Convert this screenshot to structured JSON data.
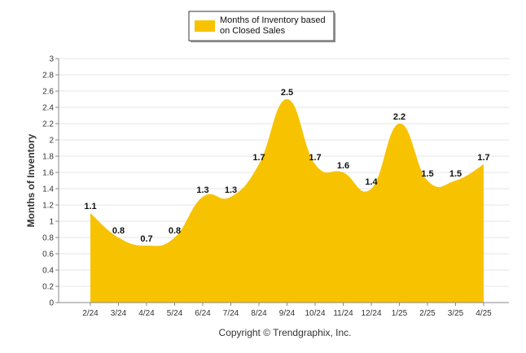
{
  "chart_data": {
    "type": "area",
    "categories": [
      "2/24",
      "3/24",
      "4/24",
      "5/24",
      "6/24",
      "7/24",
      "8/24",
      "9/24",
      "10/24",
      "11/24",
      "12/24",
      "1/25",
      "2/25",
      "3/25",
      "4/25"
    ],
    "series": [
      {
        "name": "Months of Inventory based on Closed Sales",
        "values": [
          1.1,
          0.8,
          0.7,
          0.8,
          1.3,
          1.3,
          1.7,
          2.5,
          1.7,
          1.6,
          1.4,
          2.2,
          1.5,
          1.5,
          1.7
        ],
        "color": "#F7C300"
      }
    ],
    "ylabel": "Months of Inventory",
    "xlabel": "",
    "ylim": [
      0,
      3
    ],
    "yticks": [
      "0",
      "0.2",
      "0.4",
      "0.6",
      "0.8",
      "1",
      "1.2",
      "1.4",
      "1.6",
      "1.8",
      "2",
      "2.2",
      "2.4",
      "2.6",
      "2.8",
      "3"
    ],
    "grid": true,
    "legend_placement": "top-center",
    "legend_labels": [
      "Months of Inventory based",
      "on Closed Sales"
    ]
  },
  "footer": {
    "copyright": "Copyright © Trendgraphix, Inc."
  }
}
